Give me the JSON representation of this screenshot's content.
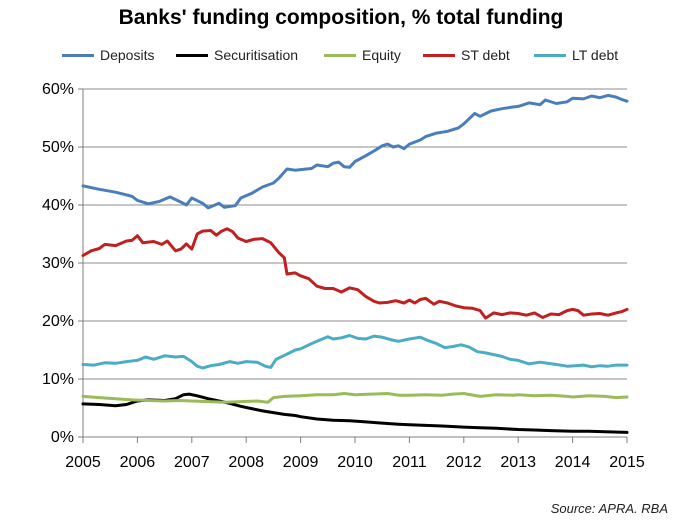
{
  "title": "Banks' funding composition, % total funding",
  "source": "Source: APRA. RBA",
  "chart_data": {
    "type": "line",
    "title": "Banks' funding composition, % total funding",
    "xlabel": "",
    "ylabel": "",
    "xlim": [
      2005,
      2015
    ],
    "ylim": [
      0,
      60
    ],
    "x_ticks": [
      2005,
      2006,
      2007,
      2008,
      2009,
      2010,
      2011,
      2012,
      2013,
      2014,
      2015
    ],
    "x_tick_labels": [
      "2005",
      "2006",
      "2007",
      "2008",
      "2009",
      "2010",
      "2011",
      "2012",
      "2013",
      "2014",
      "2015"
    ],
    "y_ticks": [
      0,
      10,
      20,
      30,
      40,
      50,
      60
    ],
    "y_tick_labels": [
      "0%",
      "10%",
      "20%",
      "30%",
      "40%",
      "50%",
      "60%"
    ],
    "grid": "horizontal",
    "legend_position": "top",
    "series": [
      {
        "name": "Deposits",
        "color": "#4a7ebb",
        "points": [
          [
            2005.0,
            43.3
          ],
          [
            2005.3,
            42.7
          ],
          [
            2005.6,
            42.2
          ],
          [
            2005.9,
            41.5
          ],
          [
            2006.0,
            40.8
          ],
          [
            2006.2,
            40.2
          ],
          [
            2006.4,
            40.6
          ],
          [
            2006.6,
            41.4
          ],
          [
            2006.8,
            40.5
          ],
          [
            2006.9,
            40.0
          ],
          [
            2007.0,
            41.2
          ],
          [
            2007.2,
            40.3
          ],
          [
            2007.3,
            39.5
          ],
          [
            2007.5,
            40.3
          ],
          [
            2007.6,
            39.6
          ],
          [
            2007.8,
            39.9
          ],
          [
            2007.9,
            41.2
          ],
          [
            2008.1,
            42.0
          ],
          [
            2008.3,
            43.1
          ],
          [
            2008.5,
            43.8
          ],
          [
            2008.6,
            44.6
          ],
          [
            2008.75,
            46.2
          ],
          [
            2008.9,
            46.0
          ],
          [
            2009.0,
            46.1
          ],
          [
            2009.2,
            46.3
          ],
          [
            2009.3,
            46.9
          ],
          [
            2009.5,
            46.6
          ],
          [
            2009.6,
            47.2
          ],
          [
            2009.7,
            47.4
          ],
          [
            2009.8,
            46.6
          ],
          [
            2009.9,
            46.5
          ],
          [
            2010.0,
            47.5
          ],
          [
            2010.2,
            48.5
          ],
          [
            2010.4,
            49.6
          ],
          [
            2010.5,
            50.2
          ],
          [
            2010.6,
            50.5
          ],
          [
            2010.7,
            50.0
          ],
          [
            2010.8,
            50.2
          ],
          [
            2010.9,
            49.7
          ],
          [
            2011.0,
            50.5
          ],
          [
            2011.2,
            51.2
          ],
          [
            2011.3,
            51.8
          ],
          [
            2011.5,
            52.4
          ],
          [
            2011.7,
            52.7
          ],
          [
            2011.9,
            53.3
          ],
          [
            2012.0,
            54.0
          ],
          [
            2012.2,
            55.8
          ],
          [
            2012.3,
            55.3
          ],
          [
            2012.5,
            56.2
          ],
          [
            2012.7,
            56.6
          ],
          [
            2012.9,
            56.9
          ],
          [
            2013.0,
            57.0
          ],
          [
            2013.2,
            57.6
          ],
          [
            2013.4,
            57.3
          ],
          [
            2013.5,
            58.1
          ],
          [
            2013.7,
            57.5
          ],
          [
            2013.9,
            57.8
          ],
          [
            2014.0,
            58.4
          ],
          [
            2014.2,
            58.3
          ],
          [
            2014.35,
            58.8
          ],
          [
            2014.5,
            58.5
          ],
          [
            2014.65,
            58.9
          ],
          [
            2014.8,
            58.6
          ],
          [
            2014.9,
            58.2
          ],
          [
            2015.0,
            57.9
          ]
        ]
      },
      {
        "name": "Securitisation",
        "color": "#000000",
        "points": [
          [
            2005.0,
            5.7
          ],
          [
            2005.3,
            5.6
          ],
          [
            2005.6,
            5.4
          ],
          [
            2005.8,
            5.6
          ],
          [
            2006.0,
            6.2
          ],
          [
            2006.2,
            6.4
          ],
          [
            2006.5,
            6.3
          ],
          [
            2006.7,
            6.6
          ],
          [
            2006.85,
            7.3
          ],
          [
            2006.95,
            7.4
          ],
          [
            2007.1,
            7.1
          ],
          [
            2007.3,
            6.6
          ],
          [
            2007.5,
            6.2
          ],
          [
            2007.7,
            5.8
          ],
          [
            2007.9,
            5.3
          ],
          [
            2008.1,
            4.9
          ],
          [
            2008.3,
            4.5
          ],
          [
            2008.5,
            4.2
          ],
          [
            2008.7,
            3.9
          ],
          [
            2008.9,
            3.7
          ],
          [
            2009.0,
            3.5
          ],
          [
            2009.3,
            3.1
          ],
          [
            2009.6,
            2.9
          ],
          [
            2009.9,
            2.8
          ],
          [
            2010.2,
            2.6
          ],
          [
            2010.5,
            2.4
          ],
          [
            2010.8,
            2.2
          ],
          [
            2011.0,
            2.1
          ],
          [
            2011.3,
            2.0
          ],
          [
            2011.6,
            1.9
          ],
          [
            2012.0,
            1.7
          ],
          [
            2012.3,
            1.6
          ],
          [
            2012.6,
            1.5
          ],
          [
            2013.0,
            1.3
          ],
          [
            2013.3,
            1.2
          ],
          [
            2013.6,
            1.1
          ],
          [
            2014.0,
            1.0
          ],
          [
            2014.3,
            1.0
          ],
          [
            2014.6,
            0.9
          ],
          [
            2015.0,
            0.8
          ]
        ]
      },
      {
        "name": "Equity",
        "color": "#9bbb59",
        "points": [
          [
            2005.0,
            7.0
          ],
          [
            2005.3,
            6.8
          ],
          [
            2005.6,
            6.6
          ],
          [
            2005.9,
            6.4
          ],
          [
            2006.2,
            6.3
          ],
          [
            2006.5,
            6.2
          ],
          [
            2006.8,
            6.3
          ],
          [
            2007.0,
            6.2
          ],
          [
            2007.3,
            6.1
          ],
          [
            2007.6,
            6.0
          ],
          [
            2007.9,
            6.1
          ],
          [
            2008.2,
            6.2
          ],
          [
            2008.4,
            6.0
          ],
          [
            2008.5,
            6.8
          ],
          [
            2008.7,
            7.0
          ],
          [
            2009.0,
            7.1
          ],
          [
            2009.3,
            7.3
          ],
          [
            2009.6,
            7.3
          ],
          [
            2009.8,
            7.5
          ],
          [
            2010.0,
            7.3
          ],
          [
            2010.3,
            7.4
          ],
          [
            2010.6,
            7.5
          ],
          [
            2010.8,
            7.2
          ],
          [
            2011.0,
            7.2
          ],
          [
            2011.3,
            7.3
          ],
          [
            2011.6,
            7.2
          ],
          [
            2011.8,
            7.4
          ],
          [
            2012.0,
            7.5
          ],
          [
            2012.3,
            7.0
          ],
          [
            2012.6,
            7.3
          ],
          [
            2012.9,
            7.2
          ],
          [
            2013.0,
            7.3
          ],
          [
            2013.3,
            7.1
          ],
          [
            2013.6,
            7.2
          ],
          [
            2013.9,
            7.0
          ],
          [
            2014.0,
            6.9
          ],
          [
            2014.3,
            7.1
          ],
          [
            2014.6,
            7.0
          ],
          [
            2014.8,
            6.8
          ],
          [
            2015.0,
            6.9
          ]
        ]
      },
      {
        "name": "ST debt",
        "color": "#c0201f",
        "points": [
          [
            2005.0,
            31.3
          ],
          [
            2005.15,
            32.1
          ],
          [
            2005.3,
            32.5
          ],
          [
            2005.4,
            33.2
          ],
          [
            2005.6,
            33.0
          ],
          [
            2005.8,
            33.8
          ],
          [
            2005.9,
            33.9
          ],
          [
            2006.0,
            34.7
          ],
          [
            2006.1,
            33.5
          ],
          [
            2006.3,
            33.7
          ],
          [
            2006.45,
            33.2
          ],
          [
            2006.55,
            33.8
          ],
          [
            2006.7,
            32.1
          ],
          [
            2006.8,
            32.4
          ],
          [
            2006.9,
            33.3
          ],
          [
            2007.0,
            32.4
          ],
          [
            2007.1,
            35.0
          ],
          [
            2007.2,
            35.5
          ],
          [
            2007.35,
            35.6
          ],
          [
            2007.45,
            34.8
          ],
          [
            2007.55,
            35.5
          ],
          [
            2007.65,
            35.9
          ],
          [
            2007.75,
            35.4
          ],
          [
            2007.85,
            34.3
          ],
          [
            2008.0,
            33.7
          ],
          [
            2008.15,
            34.1
          ],
          [
            2008.3,
            34.2
          ],
          [
            2008.45,
            33.5
          ],
          [
            2008.6,
            31.8
          ],
          [
            2008.7,
            30.9
          ],
          [
            2008.75,
            28.1
          ],
          [
            2008.9,
            28.3
          ],
          [
            2009.0,
            27.8
          ],
          [
            2009.15,
            27.3
          ],
          [
            2009.3,
            26.0
          ],
          [
            2009.45,
            25.6
          ],
          [
            2009.6,
            25.6
          ],
          [
            2009.75,
            25.0
          ],
          [
            2009.9,
            25.7
          ],
          [
            2010.05,
            25.4
          ],
          [
            2010.2,
            24.2
          ],
          [
            2010.35,
            23.4
          ],
          [
            2010.45,
            23.1
          ],
          [
            2010.6,
            23.2
          ],
          [
            2010.75,
            23.5
          ],
          [
            2010.9,
            23.1
          ],
          [
            2011.0,
            23.6
          ],
          [
            2011.1,
            23.1
          ],
          [
            2011.2,
            23.7
          ],
          [
            2011.3,
            23.9
          ],
          [
            2011.45,
            22.9
          ],
          [
            2011.55,
            23.4
          ],
          [
            2011.7,
            23.1
          ],
          [
            2011.85,
            22.6
          ],
          [
            2012.0,
            22.3
          ],
          [
            2012.15,
            22.2
          ],
          [
            2012.3,
            21.8
          ],
          [
            2012.4,
            20.5
          ],
          [
            2012.55,
            21.4
          ],
          [
            2012.7,
            21.1
          ],
          [
            2012.85,
            21.4
          ],
          [
            2013.0,
            21.3
          ],
          [
            2013.15,
            21.0
          ],
          [
            2013.3,
            21.4
          ],
          [
            2013.45,
            20.6
          ],
          [
            2013.6,
            21.2
          ],
          [
            2013.75,
            21.1
          ],
          [
            2013.9,
            21.8
          ],
          [
            2014.0,
            22.0
          ],
          [
            2014.1,
            21.8
          ],
          [
            2014.2,
            21.0
          ],
          [
            2014.35,
            21.2
          ],
          [
            2014.5,
            21.3
          ],
          [
            2014.65,
            21.0
          ],
          [
            2014.8,
            21.4
          ],
          [
            2014.9,
            21.6
          ],
          [
            2015.0,
            22.0
          ]
        ]
      },
      {
        "name": "LT debt",
        "color": "#4bacc6",
        "points": [
          [
            2005.0,
            12.5
          ],
          [
            2005.2,
            12.4
          ],
          [
            2005.4,
            12.8
          ],
          [
            2005.6,
            12.7
          ],
          [
            2005.8,
            13.0
          ],
          [
            2006.0,
            13.2
          ],
          [
            2006.15,
            13.8
          ],
          [
            2006.3,
            13.4
          ],
          [
            2006.5,
            14.0
          ],
          [
            2006.7,
            13.8
          ],
          [
            2006.85,
            13.9
          ],
          [
            2007.0,
            13.0
          ],
          [
            2007.1,
            12.2
          ],
          [
            2007.2,
            11.9
          ],
          [
            2007.35,
            12.3
          ],
          [
            2007.5,
            12.5
          ],
          [
            2007.7,
            13.0
          ],
          [
            2007.85,
            12.7
          ],
          [
            2008.0,
            13.0
          ],
          [
            2008.2,
            12.9
          ],
          [
            2008.35,
            12.2
          ],
          [
            2008.45,
            12.0
          ],
          [
            2008.55,
            13.4
          ],
          [
            2008.75,
            14.3
          ],
          [
            2008.9,
            15.0
          ],
          [
            2009.0,
            15.2
          ],
          [
            2009.2,
            16.1
          ],
          [
            2009.35,
            16.7
          ],
          [
            2009.5,
            17.3
          ],
          [
            2009.6,
            16.9
          ],
          [
            2009.75,
            17.1
          ],
          [
            2009.9,
            17.5
          ],
          [
            2010.05,
            17.0
          ],
          [
            2010.2,
            16.9
          ],
          [
            2010.35,
            17.4
          ],
          [
            2010.5,
            17.2
          ],
          [
            2010.65,
            16.8
          ],
          [
            2010.8,
            16.5
          ],
          [
            2011.0,
            16.9
          ],
          [
            2011.2,
            17.2
          ],
          [
            2011.35,
            16.6
          ],
          [
            2011.5,
            16.1
          ],
          [
            2011.65,
            15.4
          ],
          [
            2011.8,
            15.6
          ],
          [
            2011.95,
            15.9
          ],
          [
            2012.1,
            15.5
          ],
          [
            2012.25,
            14.7
          ],
          [
            2012.4,
            14.5
          ],
          [
            2012.55,
            14.2
          ],
          [
            2012.7,
            13.9
          ],
          [
            2012.85,
            13.4
          ],
          [
            2013.0,
            13.2
          ],
          [
            2013.2,
            12.6
          ],
          [
            2013.4,
            12.9
          ],
          [
            2013.55,
            12.7
          ],
          [
            2013.7,
            12.5
          ],
          [
            2013.9,
            12.2
          ],
          [
            2014.05,
            12.3
          ],
          [
            2014.2,
            12.4
          ],
          [
            2014.35,
            12.1
          ],
          [
            2014.5,
            12.3
          ],
          [
            2014.65,
            12.2
          ],
          [
            2014.8,
            12.4
          ],
          [
            2015.0,
            12.4
          ]
        ]
      }
    ]
  }
}
